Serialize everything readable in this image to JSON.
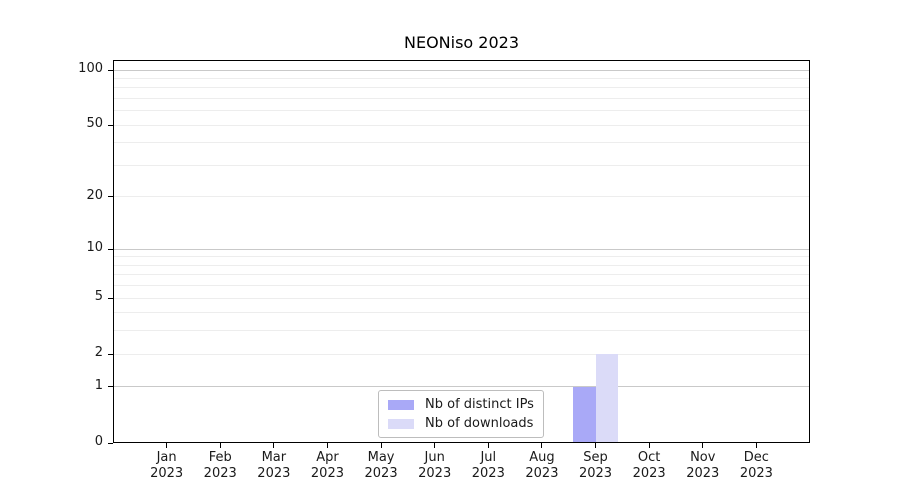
{
  "figure": {
    "title": "NEONiso 2023"
  },
  "chart_data": {
    "type": "bar",
    "title": "NEONiso 2023",
    "categories": [
      "Jan",
      "Feb",
      "Mar",
      "Apr",
      "May",
      "Jun",
      "Jul",
      "Aug",
      "Sep",
      "Oct",
      "Nov",
      "Dec"
    ],
    "category_year": "2023",
    "series": [
      {
        "name": "Nb of distinct IPs",
        "color": "#a9a9f7",
        "values": [
          0,
          0,
          0,
          0,
          0,
          0,
          0,
          0,
          1,
          0,
          0,
          0
        ]
      },
      {
        "name": "Nb of downloads",
        "color": "#dbdbf8",
        "values": [
          0,
          0,
          0,
          0,
          0,
          0,
          0,
          0,
          2,
          0,
          0,
          0
        ]
      }
    ],
    "xlabel": "",
    "ylabel": "",
    "ylim": [
      0,
      100
    ],
    "yscale": "log1p",
    "yticks": [
      0,
      1,
      2,
      5,
      10,
      20,
      50,
      100
    ],
    "grid": {
      "major": [
        1,
        10,
        100
      ],
      "minor": [
        2,
        3,
        4,
        5,
        6,
        7,
        8,
        9,
        20,
        30,
        40,
        50,
        60,
        70,
        80,
        90
      ]
    },
    "legend": {
      "position": "lower-center",
      "entries": [
        "Nb of distinct IPs",
        "Nb of downloads"
      ]
    },
    "colors": {
      "spine": "#000000",
      "major_grid": "#c9c9c9",
      "minor_grid": "#ededed",
      "text": "#1a1a1a",
      "legend_border": "#bdbdbd",
      "background": "#ffffff"
    }
  }
}
